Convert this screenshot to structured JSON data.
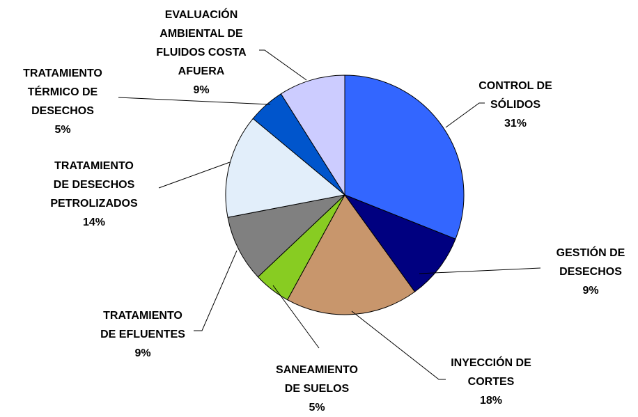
{
  "chart_data": {
    "type": "pie",
    "categories": [
      "CONTROL DE SÓLIDOS",
      "GESTIÓN DE DESECHOS",
      "INYECCIÓN DE CORTES",
      "SANEAMIENTO DE SUELOS",
      "TRATAMIENTO DE EFLUENTES",
      "TRATAMIENTO DE DESECHOS PETROLIZADOS",
      "TRATAMIENTO TÉRMICO DE DESECHOS",
      "EVALUACIÓN AMBIENTAL DE FLUIDOS COSTA AFUERA"
    ],
    "values": [
      31,
      9,
      18,
      5,
      9,
      14,
      5,
      9
    ],
    "value_labels": [
      "31%",
      "9%",
      "18%",
      "5%",
      "9%",
      "14%",
      "5%",
      "9%"
    ],
    "colors": [
      "#3366ff",
      "#000080",
      "#c8966c",
      "#88cc22",
      "#808080",
      "#e2eefa",
      "#0055cc",
      "#ccccff"
    ]
  }
}
